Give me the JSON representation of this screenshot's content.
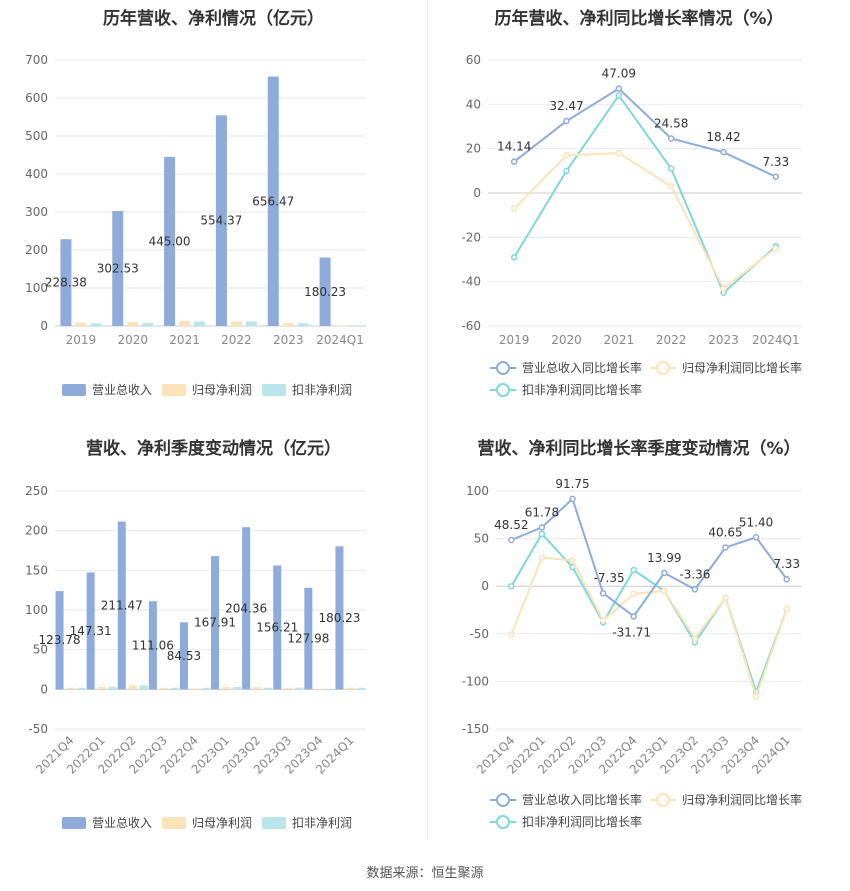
{
  "source_label": "数据来源：恒生聚源",
  "colors": {
    "revenue": "#8eabda",
    "parent_profit": "#fde3b8",
    "deducted_profit": "#b9e6ea",
    "revenue_line": "#8eabda",
    "parent_line": "#fde3b8",
    "deducted_line": "#7fd6dc"
  },
  "chart_data": [
    {
      "id": "annual_bar",
      "type": "bar",
      "title": "历年营收、净利情况（亿元）",
      "categories": [
        "2019",
        "2020",
        "2021",
        "2022",
        "2023",
        "2024Q1"
      ],
      "ylim": [
        0,
        700
      ],
      "yticks": [
        0,
        100,
        200,
        300,
        400,
        500,
        600,
        700
      ],
      "series": [
        {
          "name": "营业总收入",
          "values": [
            228.38,
            302.53,
            445.0,
            554.37,
            656.47,
            180.23
          ],
          "labels": [
            "228.38",
            "302.53",
            "445.00",
            "554.37",
            "656.47",
            "180.23"
          ]
        },
        {
          "name": "归母净利润",
          "values": [
            9,
            11,
            13,
            12,
            8,
            2
          ]
        },
        {
          "name": "扣非净利润",
          "values": [
            7,
            8,
            12,
            12,
            7,
            2
          ]
        }
      ]
    },
    {
      "id": "annual_line",
      "type": "line",
      "title": "历年营收、净利同比增长率情况（%）",
      "categories": [
        "2019",
        "2020",
        "2021",
        "2022",
        "2023",
        "2024Q1"
      ],
      "ylim": [
        -60,
        60
      ],
      "yticks": [
        -60,
        -40,
        -20,
        0,
        20,
        40,
        60
      ],
      "series": [
        {
          "name": "营业总收入同比增长率",
          "values": [
            14.14,
            32.47,
            47.09,
            24.58,
            18.42,
            7.33
          ],
          "labels": [
            "14.14",
            "32.47",
            "47.09",
            "24.58",
            "18.42",
            "7.33"
          ]
        },
        {
          "name": "归母净利润同比增长率",
          "values": [
            -7,
            17,
            18,
            3,
            -43,
            -25
          ]
        },
        {
          "name": "扣非净利润同比增长率",
          "values": [
            -29,
            10,
            44,
            11,
            -45,
            -24
          ]
        }
      ]
    },
    {
      "id": "quarterly_bar",
      "type": "bar",
      "title": "营收、净利季度变动情况（亿元）",
      "categories": [
        "2021Q4",
        "2022Q1",
        "2022Q2",
        "2022Q3",
        "2022Q4",
        "2023Q1",
        "2023Q2",
        "2023Q3",
        "2023Q4",
        "2024Q1"
      ],
      "ylim": [
        -50,
        250
      ],
      "yticks": [
        -50,
        0,
        50,
        100,
        150,
        200,
        250
      ],
      "series": [
        {
          "name": "营业总收入",
          "values": [
            123.78,
            147.31,
            211.47,
            111.06,
            84.53,
            167.91,
            204.36,
            156.21,
            127.98,
            180.23
          ],
          "labels": [
            "123.78",
            "147.31",
            "211.47",
            "111.06",
            "84.53",
            "167.91",
            "204.36",
            "156.21",
            "127.98",
            "180.23"
          ]
        },
        {
          "name": "归母净利润",
          "values": [
            2,
            3,
            5,
            2,
            1,
            3,
            3,
            2,
            -1,
            2
          ]
        },
        {
          "name": "扣非净利润",
          "values": [
            2,
            3,
            5,
            2,
            2,
            3,
            2,
            2,
            -1,
            2
          ]
        }
      ]
    },
    {
      "id": "quarterly_line",
      "type": "line",
      "title": "营收、净利同比增长率季度变动情况（%）",
      "categories": [
        "2021Q4",
        "2022Q1",
        "2022Q2",
        "2022Q3",
        "2022Q4",
        "2023Q1",
        "2023Q2",
        "2023Q3",
        "2023Q4",
        "2024Q1"
      ],
      "ylim": [
        -150,
        100
      ],
      "yticks": [
        -150,
        -100,
        -50,
        0,
        50,
        100
      ],
      "series": [
        {
          "name": "营业总收入同比增长率",
          "values": [
            48.52,
            61.78,
            91.75,
            -7.35,
            -31.71,
            13.99,
            -3.36,
            40.65,
            51.4,
            7.33
          ],
          "labels": [
            "48.52",
            "61.78",
            "91.75",
            "-7.35",
            "-31.71",
            "13.99",
            "-3.36",
            "40.65",
            "51.40",
            "7.33"
          ]
        },
        {
          "name": "归母净利润同比增长率",
          "values": [
            -51,
            30,
            27,
            -36,
            -8,
            -5,
            -55,
            -12,
            -116,
            -24
          ]
        },
        {
          "name": "扣非净利润同比增长率",
          "values": [
            0,
            55,
            20,
            -38,
            17,
            -5,
            -59,
            -12,
            -111,
            -24
          ]
        }
      ]
    }
  ]
}
